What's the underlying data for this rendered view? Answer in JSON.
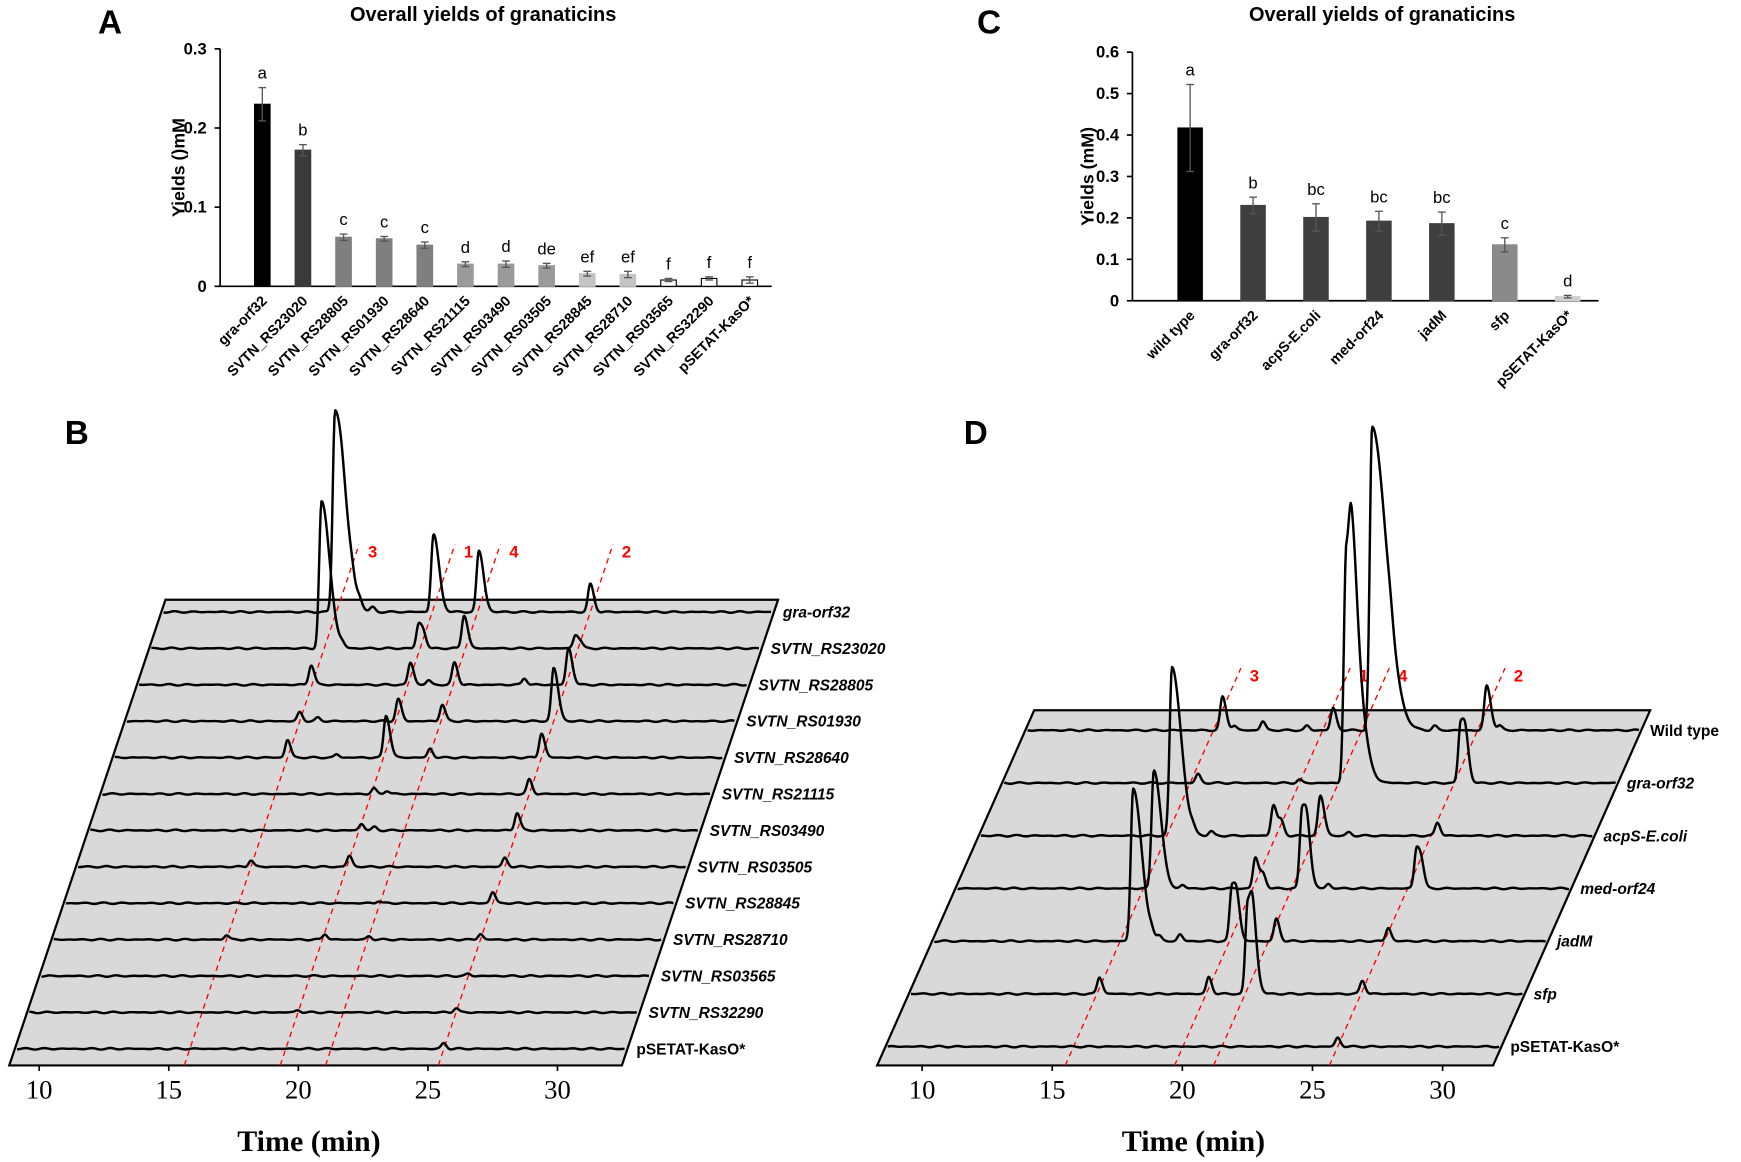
{
  "panel_letters": {
    "a": "A",
    "b": "B",
    "c": "C",
    "d": "D"
  },
  "chart_data": [
    {
      "panel": "A",
      "type": "bar",
      "title": "Overall yields of granaticins",
      "ylabel": "Yields ()mM",
      "xlabel": "",
      "ylim": [
        0,
        0.3
      ],
      "yticks": [
        "0",
        "0.1",
        "0.2",
        "0.3"
      ],
      "ytick_values": [
        0,
        0.1,
        0.2,
        0.3
      ],
      "categories": [
        "gra-orf32",
        "SVTN_RS23020",
        "SVTN_RS28805",
        "SVTN_RS01930",
        "SVTN_RS28640",
        "SVTN_RS21115",
        "SVTN_RS03490",
        "SVTN_RS03505",
        "SVTN_RS28845",
        "SVTN_RS28710",
        "SVTN_RS03565",
        "SVTN_RS32290",
        "pSETAT-KasO*"
      ],
      "values": [
        0.23,
        0.172,
        0.062,
        0.06,
        0.052,
        0.028,
        0.028,
        0.026,
        0.016,
        0.015,
        0.008,
        0.01,
        0.008
      ],
      "errors": [
        0.021,
        0.007,
        0.004,
        0.003,
        0.004,
        0.003,
        0.004,
        0.003,
        0.003,
        0.004,
        0.002,
        0.002,
        0.004
      ],
      "significance": [
        "a",
        "b",
        "c",
        "c",
        "c",
        "d",
        "d",
        "de",
        "ef",
        "ef",
        "f",
        "f",
        "f"
      ],
      "colors": [
        "#000000",
        "#3a3a3a",
        "#7f7f7f",
        "#7f7f7f",
        "#7f7f7f",
        "#9a9a9a",
        "#9a9a9a",
        "#9a9a9a",
        "#c4c4c4",
        "#c4c4c4",
        "#ffffff",
        "#ffffff",
        "#ffffff"
      ]
    },
    {
      "panel": "B",
      "type": "line",
      "xlabel": "Time (min)",
      "xlim": [
        10,
        32
      ],
      "xticks": [
        "10",
        "15",
        "20",
        "25",
        "30"
      ],
      "xtick_values": [
        10,
        15,
        20,
        25,
        30
      ],
      "compound_markers": [
        {
          "label": "3",
          "time": 15.6
        },
        {
          "label": "1",
          "time": 19.3
        },
        {
          "label": "4",
          "time": 21.05
        },
        {
          "label": "2",
          "time": 25.4
        }
      ],
      "traces": [
        {
          "name": "gra-orf32",
          "italic": true,
          "peaks": [
            [
              15.55,
              182
            ],
            [
              19.35,
              70
            ],
            [
              21.1,
              55
            ],
            [
              25.4,
              25
            ],
            [
              16.2,
              4
            ],
            [
              16.5,
              5
            ],
            [
              17.0,
              4
            ],
            [
              15.8,
              3
            ]
          ]
        },
        {
          "name": "SVTN_RS23020",
          "italic": true,
          "peaks": [
            [
              15.5,
              132
            ],
            [
              19.25,
              22
            ],
            [
              19.45,
              10
            ],
            [
              21.0,
              30
            ],
            [
              25.3,
              12
            ],
            [
              25.5,
              5
            ],
            [
              16.3,
              3
            ]
          ]
        },
        {
          "name": "SVTN_RS28805",
          "italic": true,
          "peaks": [
            [
              15.57,
              18
            ],
            [
              19.4,
              20
            ],
            [
              20.1,
              4
            ],
            [
              21.1,
              20
            ],
            [
              23.8,
              6
            ],
            [
              25.5,
              33
            ]
          ]
        },
        {
          "name": "SVTN_RS01930",
          "italic": true,
          "peaks": [
            [
              15.6,
              8
            ],
            [
              16.3,
              3
            ],
            [
              19.4,
              20
            ],
            [
              21.1,
              15
            ],
            [
              25.4,
              48
            ]
          ]
        },
        {
          "name": "SVTN_RS28640",
          "italic": true,
          "peaks": [
            [
              15.6,
              16
            ],
            [
              17.5,
              3
            ],
            [
              19.4,
              38
            ],
            [
              21.1,
              8
            ],
            [
              25.4,
              22
            ]
          ]
        },
        {
          "name": "SVTN_RS21115",
          "italic": true,
          "peaks": [
            [
              19.4,
              5
            ],
            [
              19.9,
              3
            ],
            [
              25.4,
              13
            ]
          ]
        },
        {
          "name": "SVTN_RS03490",
          "italic": true,
          "peaks": [
            [
              19.4,
              6
            ],
            [
              19.9,
              3
            ],
            [
              25.4,
              16
            ]
          ]
        },
        {
          "name": "SVTN_RS03505",
          "italic": true,
          "peaks": [
            [
              15.6,
              6
            ],
            [
              19.4,
              10
            ],
            [
              25.4,
              8
            ]
          ]
        },
        {
          "name": "SVTN_RS28845",
          "italic": true,
          "peaks": [
            [
              21.0,
              2
            ],
            [
              25.4,
              10
            ]
          ]
        },
        {
          "name": "SVTN_RS28710",
          "italic": true,
          "peaks": [
            [
              15.6,
              4
            ],
            [
              19.4,
              5
            ],
            [
              21.1,
              3
            ],
            [
              25.4,
              5
            ]
          ]
        },
        {
          "name": "SVTN_RS03565",
          "italic": true,
          "peaks": [
            [
              25.4,
              2
            ]
          ]
        },
        {
          "name": "SVTN_RS32290",
          "italic": true,
          "peaks": [
            [
              19.3,
              2
            ],
            [
              25.4,
              4
            ]
          ]
        },
        {
          "name": "pSETAT-KasO*",
          "italic": false,
          "peaks": [
            [
              25.4,
              5
            ]
          ]
        }
      ]
    },
    {
      "panel": "C",
      "type": "bar",
      "title": "Overall yields of granaticins",
      "ylabel": "Yields (mM)",
      "xlabel": "",
      "ylim": [
        0,
        0.6
      ],
      "yticks": [
        "0",
        "0.1",
        "0.2",
        "0.3",
        "0.4",
        "0.5",
        "0.6"
      ],
      "ytick_values": [
        0,
        0.1,
        0.2,
        0.3,
        0.4,
        0.5,
        0.6
      ],
      "categories": [
        "wild type",
        "gra-orf32",
        "acpS-E.coli",
        "med-orf24",
        "jadM",
        "sfp",
        "pSETAT-KasO*"
      ],
      "values": [
        0.417,
        0.23,
        0.201,
        0.192,
        0.186,
        0.135,
        0.01
      ],
      "errors": [
        0.105,
        0.02,
        0.033,
        0.024,
        0.028,
        0.017,
        0.003
      ],
      "significance": [
        "a",
        "b",
        "bc",
        "bc",
        "bc",
        "c",
        "d"
      ],
      "colors": [
        "#000000",
        "#3f3f3f",
        "#3f3f3f",
        "#3f3f3f",
        "#3f3f3f",
        "#8a8a8a",
        "#cfcfcf"
      ]
    },
    {
      "panel": "D",
      "type": "line",
      "xlabel": "Time (min)",
      "xlim": [
        10,
        32
      ],
      "xticks": [
        "10",
        "15",
        "20",
        "25",
        "30"
      ],
      "xtick_values": [
        10,
        15,
        20,
        25,
        30
      ],
      "compound_markers": [
        {
          "label": "3",
          "time": 15.5
        },
        {
          "label": "1",
          "time": 19.7
        },
        {
          "label": "4",
          "time": 21.2
        },
        {
          "label": "2",
          "time": 25.65
        }
      ],
      "traces": [
        {
          "name": "Wild type",
          "italic": false,
          "peaks": [
            [
              15.85,
              30
            ],
            [
              16.3,
              4
            ],
            [
              17.4,
              8
            ],
            [
              19.1,
              4
            ],
            [
              20.1,
              20
            ],
            [
              21.6,
              273
            ],
            [
              22.3,
              6
            ],
            [
              24.0,
              4
            ],
            [
              26.0,
              40
            ],
            [
              26.5,
              4
            ]
          ]
        },
        {
          "name": "gra-orf32",
          "italic": true,
          "peaks": [
            [
              15.8,
              8
            ],
            [
              19.7,
              3
            ],
            [
              21.5,
              210
            ],
            [
              21.7,
              60
            ],
            [
              25.9,
              55
            ],
            [
              26.1,
              20
            ]
          ]
        },
        {
          "name": "acpS-E.coli",
          "italic": true,
          "peaks": [
            [
              15.7,
              152
            ],
            [
              16.5,
              4
            ],
            [
              17.2,
              4
            ],
            [
              19.6,
              28
            ],
            [
              19.9,
              12
            ],
            [
              21.4,
              36
            ],
            [
              22.5,
              3
            ],
            [
              25.9,
              12
            ]
          ]
        },
        {
          "name": "med-orf24",
          "italic": true,
          "peaks": [
            [
              15.9,
              107
            ],
            [
              17.0,
              3
            ],
            [
              19.8,
              28
            ],
            [
              20.1,
              12
            ],
            [
              21.6,
              73
            ],
            [
              21.8,
              20
            ],
            [
              22.6,
              4
            ],
            [
              26.0,
              37
            ],
            [
              26.2,
              12
            ]
          ]
        },
        {
          "name": "jadM",
          "italic": true,
          "peaks": [
            [
              16.0,
              138
            ],
            [
              16.7,
              5
            ],
            [
              17.0,
              4
            ],
            [
              17.8,
              6
            ],
            [
              19.8,
              50
            ],
            [
              20.0,
              20
            ],
            [
              21.5,
              20
            ],
            [
              25.8,
              12
            ]
          ]
        },
        {
          "name": "sfp",
          "italic": true,
          "peaks": [
            [
              15.6,
              15
            ],
            [
              19.8,
              15
            ],
            [
              21.3,
              83
            ],
            [
              21.5,
              30
            ],
            [
              25.7,
              12
            ]
          ]
        },
        {
          "name": "pSETAT-KasO*",
          "italic": false,
          "peaks": [
            [
              25.65,
              8
            ]
          ]
        }
      ]
    }
  ]
}
